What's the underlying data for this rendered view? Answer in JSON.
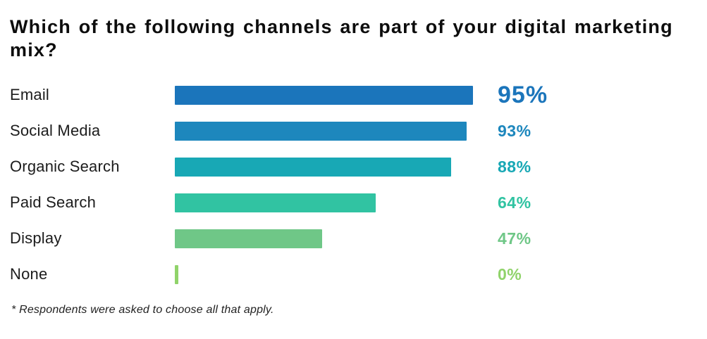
{
  "title": "Which of the following channels are part of your digital marketing mix?",
  "footnote": "* Respondents were asked to choose all that apply.",
  "chart_data": {
    "type": "bar",
    "orientation": "horizontal",
    "title": "Which of the following channels are part of your digital marketing mix?",
    "categories": [
      "Email",
      "Social Media",
      "Organic Search",
      "Paid Search",
      "Display",
      "None"
    ],
    "values": [
      95,
      93,
      88,
      64,
      47,
      0
    ],
    "value_labels": [
      "95%",
      "93%",
      "88%",
      "64%",
      "47%",
      "0%"
    ],
    "bar_colors": [
      "#1b75bb",
      "#1d87bd",
      "#18a8b5",
      "#31c3a2",
      "#6fc787",
      "#90d36a"
    ],
    "xlim": [
      0,
      100
    ],
    "grid": false,
    "legend": "none",
    "annotation_note": "* Respondents were asked to choose all that apply."
  }
}
